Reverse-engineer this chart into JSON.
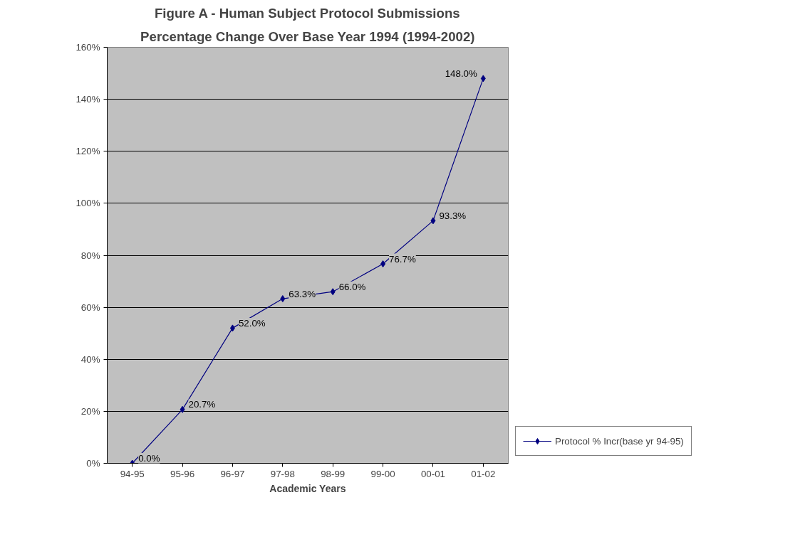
{
  "chart_data": {
    "type": "line",
    "title": "Figure A - Human Subject Protocol Submissions",
    "subtitle": "Percentage Change Over Base Year 1994 (1994-2002)",
    "xlabel": "Academic Years",
    "categories": [
      "94-95",
      "95-96",
      "96-97",
      "97-98",
      "98-99",
      "99-00",
      "00-01",
      "01-02"
    ],
    "series": [
      {
        "name": "Protocol % Incr(base yr 94-95)",
        "color": "#000080",
        "values": [
          0.0,
          20.7,
          52.0,
          63.3,
          66.0,
          76.7,
          93.3,
          148.0
        ],
        "value_labels": [
          "0.0%",
          "20.7%",
          "52.0%",
          "63.3%",
          "66.0%",
          "76.7%",
          "93.3%",
          "148.0%"
        ]
      }
    ],
    "ylim": [
      0,
      160
    ],
    "yticks": [
      {
        "value": 0,
        "label": "0%"
      },
      {
        "value": 20,
        "label": "20%"
      },
      {
        "value": 40,
        "label": "40%"
      },
      {
        "value": 60,
        "label": "60%"
      },
      {
        "value": 80,
        "label": "80%"
      },
      {
        "value": 100,
        "label": "100%"
      },
      {
        "value": 120,
        "label": "120%"
      },
      {
        "value": 140,
        "label": "140%"
      },
      {
        "value": 160,
        "label": "160%"
      }
    ],
    "grid": "y",
    "legend": "right",
    "marker": "diamond",
    "line_style": "solid"
  }
}
